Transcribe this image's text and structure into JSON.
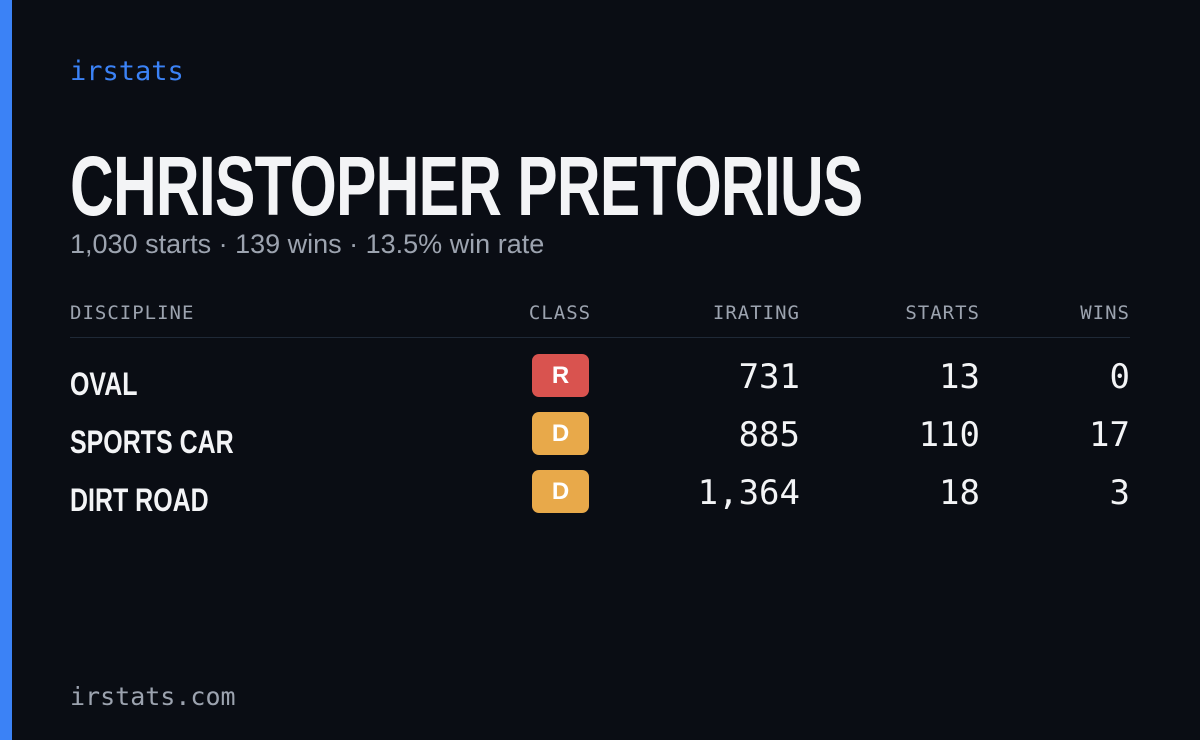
{
  "brand": "irstats",
  "driver": {
    "name": "CHRISTOPHER PRETORIUS",
    "summary": "1,030 starts · 139 wins · 13.5% win rate"
  },
  "table": {
    "headers": [
      "DISCIPLINE",
      "CLASS",
      "IRATING",
      "STARTS",
      "WINS"
    ],
    "rows": [
      {
        "discipline": "OVAL",
        "class": "R",
        "class_color": "#d9534f",
        "irating": "731",
        "starts": "13",
        "wins": "0"
      },
      {
        "discipline": "SPORTS CAR",
        "class": "D",
        "class_color": "#e8a94a",
        "irating": "885",
        "starts": "110",
        "wins": "17"
      },
      {
        "discipline": "DIRT ROAD",
        "class": "D",
        "class_color": "#e8a94a",
        "irating": "1,364",
        "starts": "18",
        "wins": "3"
      }
    ]
  },
  "footer": "irstats.com"
}
